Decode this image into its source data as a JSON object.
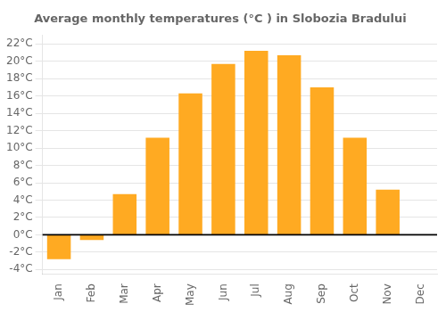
{
  "chart_data": {
    "type": "bar",
    "title": "Average monthly temperatures (°C ) in Slobozia Bradului",
    "categories": [
      "Jan",
      "Feb",
      "Mar",
      "Apr",
      "May",
      "Jun",
      "Jul",
      "Aug",
      "Sep",
      "Oct",
      "Nov",
      "Dec"
    ],
    "values": [
      -2.8,
      -0.6,
      4.7,
      11.2,
      16.3,
      19.7,
      21.2,
      20.7,
      17.0,
      11.2,
      5.2,
      0.0
    ],
    "color": "#FFAA22",
    "ylim": [
      -4.5,
      23
    ],
    "yticks": [
      {
        "value": -4,
        "label": "-4°C"
      },
      {
        "value": -2,
        "label": "-2°C"
      },
      {
        "value": 0,
        "label": "0°C"
      },
      {
        "value": 2,
        "label": "2°C"
      },
      {
        "value": 4,
        "label": "4°C"
      },
      {
        "value": 6,
        "label": "6°C"
      },
      {
        "value": 8,
        "label": "8°C"
      },
      {
        "value": 10,
        "label": "10°C"
      },
      {
        "value": 12,
        "label": "12°C"
      },
      {
        "value": 14,
        "label": "14°C"
      },
      {
        "value": 16,
        "label": "16°C"
      },
      {
        "value": 18,
        "label": "18°C"
      },
      {
        "value": 20,
        "label": "20°C"
      },
      {
        "value": 22,
        "label": "22°C"
      }
    ],
    "grid": true
  }
}
